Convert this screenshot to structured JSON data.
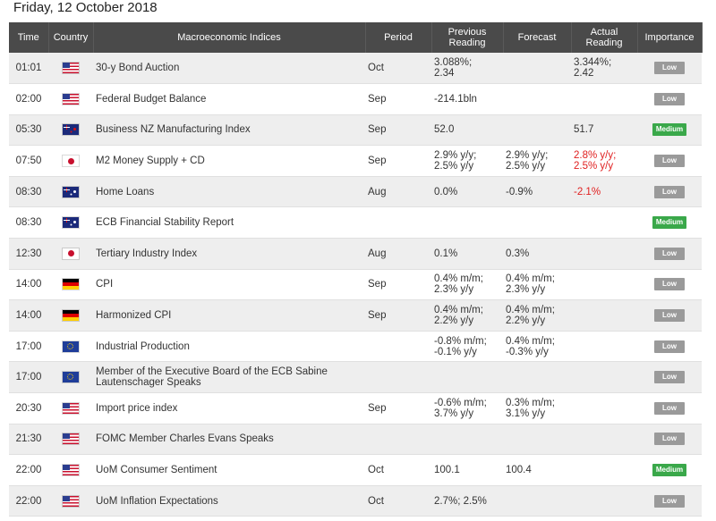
{
  "date_title": "Friday, 12 October 2018",
  "headers": {
    "time": "Time",
    "country": "Country",
    "indices": "Macroeconomic Indices",
    "period": "Period",
    "previous": "Previous Reading",
    "forecast": "Forecast",
    "actual": "Actual Reading",
    "importance": "Importance"
  },
  "colors": {
    "header_bg": "#4a4a4a",
    "low_badge": "#9a9a9a",
    "medium_badge": "#3aa84a",
    "negative_text": "#e02020"
  },
  "rows": [
    {
      "time": "01:01",
      "flag": "us",
      "flag_icon": "us-flag-icon",
      "indicator": "30-y Bond Auction",
      "period": "Oct",
      "previous": [
        "3.088%;",
        "2.34"
      ],
      "forecast": [],
      "actual": [
        "3.344%;",
        "2.42"
      ],
      "actual_negative": false,
      "importance": "Low",
      "importance_level": "low"
    },
    {
      "time": "02:00",
      "flag": "us",
      "flag_icon": "us-flag-icon",
      "indicator": "Federal Budget Balance",
      "period": "Sep",
      "previous": [
        "-214.1bln"
      ],
      "forecast": [],
      "actual": [],
      "actual_negative": false,
      "importance": "Low",
      "importance_level": "low"
    },
    {
      "time": "05:30",
      "flag": "nz",
      "flag_icon": "nz-flag-icon",
      "indicator": "Business NZ Manufacturing Index",
      "period": "Sep",
      "previous": [
        "52.0"
      ],
      "forecast": [],
      "actual": [
        "51.7"
      ],
      "actual_negative": false,
      "importance": "Medium",
      "importance_level": "medium"
    },
    {
      "time": "07:50",
      "flag": "jp",
      "flag_icon": "jp-flag-icon",
      "indicator": "M2 Money Supply + CD",
      "period": "Sep",
      "previous": [
        "2.9% y/y;",
        "2.5% y/y"
      ],
      "forecast": [
        "2.9% y/y;",
        "2.5% y/y"
      ],
      "actual": [
        "2.8% y/y;",
        "2.5% y/y"
      ],
      "actual_negative": true,
      "importance": "Low",
      "importance_level": "low"
    },
    {
      "time": "08:30",
      "flag": "au",
      "flag_icon": "au-flag-icon",
      "indicator": "Home Loans",
      "period": "Aug",
      "previous": [
        "0.0%"
      ],
      "forecast": [
        "-0.9%"
      ],
      "actual": [
        "-2.1%"
      ],
      "actual_negative": true,
      "importance": "Low",
      "importance_level": "low"
    },
    {
      "time": "08:30",
      "flag": "au",
      "flag_icon": "au-flag-icon",
      "indicator": "ECB Financial Stability Report",
      "period": "",
      "previous": [],
      "forecast": [],
      "actual": [],
      "actual_negative": false,
      "importance": "Medium",
      "importance_level": "medium"
    },
    {
      "time": "12:30",
      "flag": "jp",
      "flag_icon": "jp-flag-icon",
      "indicator": "Tertiary Industry Index",
      "period": "Aug",
      "previous": [
        "0.1%"
      ],
      "forecast": [
        "0.3%"
      ],
      "actual": [],
      "actual_negative": false,
      "importance": "Low",
      "importance_level": "low"
    },
    {
      "time": "14:00",
      "flag": "de",
      "flag_icon": "de-flag-icon",
      "indicator": "CPI",
      "period": "Sep",
      "previous": [
        "0.4% m/m;",
        "2.3% y/y"
      ],
      "forecast": [
        "0.4% m/m;",
        "2.3% y/y"
      ],
      "actual": [],
      "actual_negative": false,
      "importance": "Low",
      "importance_level": "low"
    },
    {
      "time": "14:00",
      "flag": "de",
      "flag_icon": "de-flag-icon",
      "indicator": "Harmonized CPI",
      "period": "Sep",
      "previous": [
        "0.4% m/m;",
        "2.2% y/y"
      ],
      "forecast": [
        "0.4% m/m;",
        "2.2% y/y"
      ],
      "actual": [],
      "actual_negative": false,
      "importance": "Low",
      "importance_level": "low"
    },
    {
      "time": "17:00",
      "flag": "eu",
      "flag_icon": "eu-flag-icon",
      "indicator": "Industrial Production",
      "period": "",
      "previous": [
        "-0.8% m/m;",
        "-0.1% y/y"
      ],
      "forecast": [
        "0.4% m/m;",
        "-0.3% y/y"
      ],
      "actual": [],
      "actual_negative": false,
      "importance": "Low",
      "importance_level": "low"
    },
    {
      "time": "17:00",
      "flag": "eu",
      "flag_icon": "eu-flag-icon",
      "indicator": "Member of the Executive Board of the ECB Sabine Lautenschager Speaks",
      "period": "",
      "previous": [],
      "forecast": [],
      "actual": [],
      "actual_negative": false,
      "importance": "Low",
      "importance_level": "low"
    },
    {
      "time": "20:30",
      "flag": "us",
      "flag_icon": "us-flag-icon",
      "indicator": "Import price index",
      "period": "Sep",
      "previous": [
        "-0.6% m/m;",
        "3.7% y/y"
      ],
      "forecast": [
        "0.3% m/m;",
        "3.1% y/y"
      ],
      "actual": [],
      "actual_negative": false,
      "importance": "Low",
      "importance_level": "low"
    },
    {
      "time": "21:30",
      "flag": "us",
      "flag_icon": "us-flag-icon",
      "indicator": "FOMC Member Charles Evans Speaks",
      "period": "",
      "previous": [],
      "forecast": [],
      "actual": [],
      "actual_negative": false,
      "importance": "Low",
      "importance_level": "low"
    },
    {
      "time": "22:00",
      "flag": "us",
      "flag_icon": "us-flag-icon",
      "indicator": "UoM Consumer Sentiment",
      "period": "Oct",
      "previous": [
        "100.1"
      ],
      "forecast": [
        "100.4"
      ],
      "actual": [],
      "actual_negative": false,
      "importance": "Medium",
      "importance_level": "medium"
    },
    {
      "time": "22:00",
      "flag": "us",
      "flag_icon": "us-flag-icon",
      "indicator": "UoM Inflation Expectations",
      "period": "Oct",
      "previous": [
        "2.7%; 2.5%"
      ],
      "forecast": [],
      "actual": [],
      "actual_negative": false,
      "importance": "Low",
      "importance_level": "low"
    }
  ]
}
